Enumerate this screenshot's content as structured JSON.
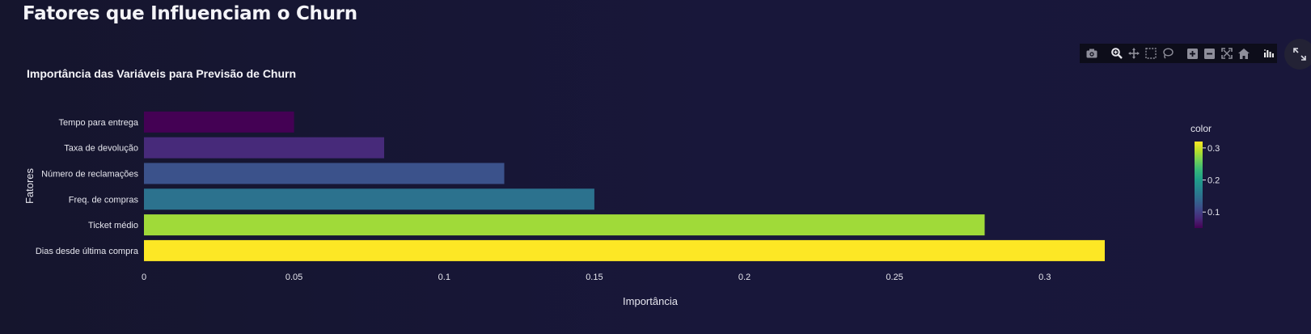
{
  "page": {
    "title": "Fatores que Influenciam o Churn"
  },
  "modebar": {
    "icons": [
      "camera-icon",
      "zoom-icon",
      "pan-icon",
      "box-select-icon",
      "lasso-select-icon",
      "zoom-in-icon",
      "zoom-out-icon",
      "autoscale-icon",
      "reset-axes-icon",
      "plotly-logo-icon"
    ]
  },
  "colors": {
    "background": "#16152e",
    "text": "#f2f2f2",
    "colorscale": [
      "#440154",
      "#482878",
      "#3e4989",
      "#31688e",
      "#26828e",
      "#1f9e89",
      "#35b779",
      "#6ece58",
      "#b5de2b",
      "#fde725"
    ]
  },
  "chart_data": {
    "type": "bar",
    "orientation": "horizontal",
    "title": "Importância das Variáveis para Previsão de Churn",
    "xlabel": "Importância",
    "ylabel": "Fatores",
    "categories": [
      "Tempo para entrega",
      "Taxa de devolução",
      "Número de reclamações",
      "Freq. de compras",
      "Ticket médio",
      "Dias desde última compra"
    ],
    "values": [
      0.05,
      0.08,
      0.12,
      0.15,
      0.28,
      0.32
    ],
    "bar_colors": [
      "#440154",
      "#472a7a",
      "#3b528b",
      "#2c728e",
      "#a0da39",
      "#fde725"
    ],
    "xlim": [
      0,
      0.32
    ],
    "xticks": [
      0,
      0.05,
      0.1,
      0.15,
      0.2,
      0.25,
      0.3
    ],
    "xtick_labels": [
      "0",
      "0.05",
      "0.1",
      "0.15",
      "0.2",
      "0.25",
      "0.3"
    ],
    "grid": false,
    "colorbar": {
      "title": "color",
      "range": [
        0.05,
        0.32
      ],
      "ticks": [
        0.1,
        0.2,
        0.3
      ],
      "tick_labels": [
        "0.1",
        "0.2",
        "0.3"
      ],
      "placement": "right"
    }
  }
}
